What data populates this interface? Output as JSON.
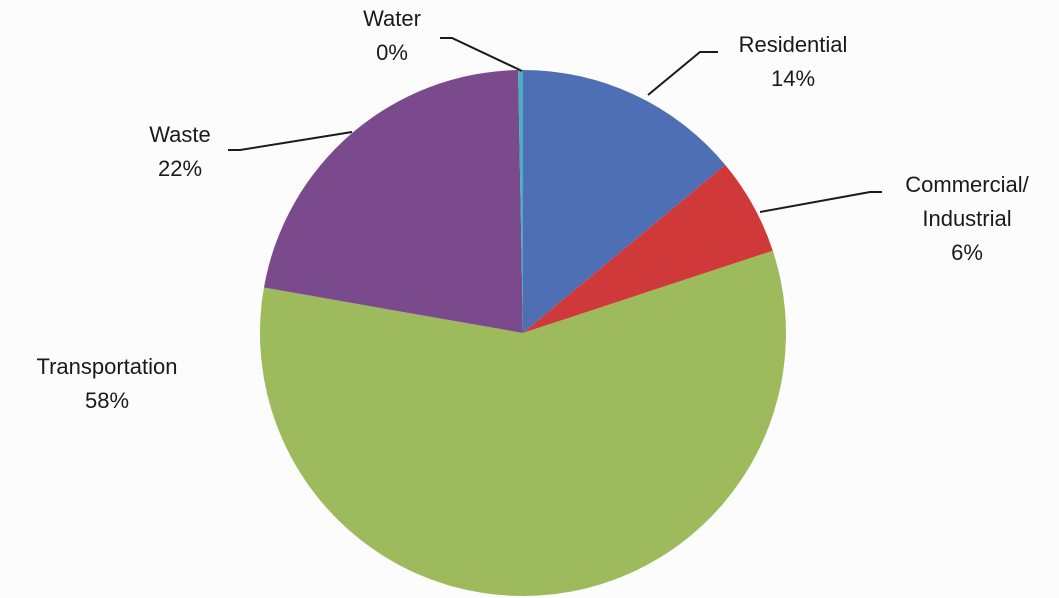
{
  "chart_data": {
    "type": "pie",
    "slices": [
      {
        "label": "Residential",
        "label_lines": [
          "Residential"
        ],
        "pct_text": "14%",
        "value": 14,
        "color": "#4f6fb5"
      },
      {
        "label": "Commercial/ Industrial",
        "label_lines": [
          "Commercial/",
          "Industrial"
        ],
        "pct_text": "6%",
        "value": 6,
        "color": "#d03939"
      },
      {
        "label": "Transportation",
        "label_lines": [
          "Transportation"
        ],
        "pct_text": "58%",
        "value": 58,
        "color": "#9dba5c"
      },
      {
        "label": "Waste",
        "label_lines": [
          "Waste"
        ],
        "pct_text": "22%",
        "value": 22,
        "color": "#7a4a8c"
      },
      {
        "label": "Water",
        "label_lines": [
          "Water"
        ],
        "pct_text": "0%",
        "value": 0.3,
        "color": "#4bacc6"
      }
    ],
    "start_angle_deg": 0,
    "direction": "clockwise",
    "legend": "none"
  }
}
